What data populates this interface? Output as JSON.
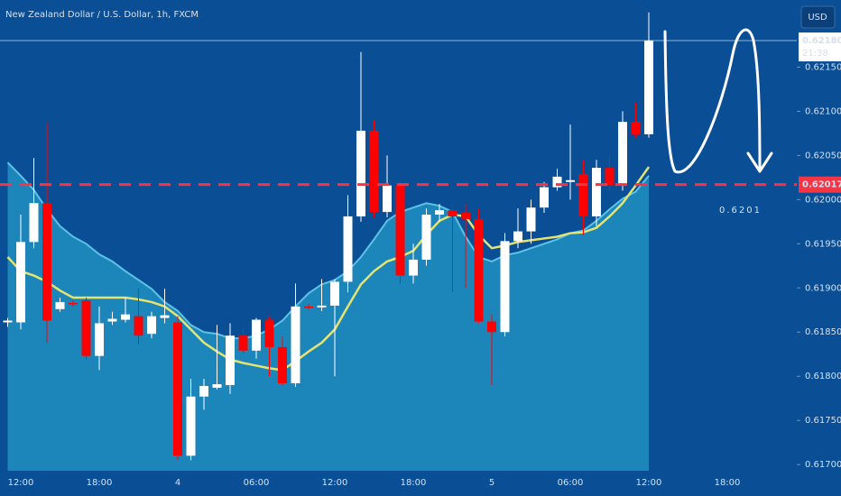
{
  "chart_data": {
    "type": "candlestick",
    "title": "New Zealand Dollar / U.S. Dollar, 1h, FXCM",
    "currency": "USD",
    "categories": [
      null,
      "12:00",
      null,
      null,
      null,
      null,
      null,
      "18:00",
      null,
      null,
      null,
      null,
      null,
      "4",
      null,
      null,
      null,
      null,
      null,
      "06:00",
      null,
      null,
      null,
      null,
      null,
      "12:00",
      null,
      null,
      null,
      null,
      null,
      "18:00",
      null,
      null,
      null,
      null,
      null,
      "5",
      null,
      null,
      null,
      null,
      null,
      "06:00",
      null,
      null,
      null,
      null,
      null,
      "12:00",
      null,
      null,
      null,
      null,
      null,
      "18:00",
      null,
      null,
      null,
      null
    ],
    "open": [
      0.61861,
      0.61861,
      0.61952,
      0.61996,
      0.61876,
      0.61883,
      0.61886,
      0.61823,
      0.61862,
      0.61864,
      0.61868,
      0.61848,
      0.61866,
      0.61861,
      0.6171,
      0.61777,
      0.61787,
      0.6179,
      0.61846,
      0.61829,
      0.61864,
      0.61833,
      0.61792,
      0.61879,
      0.61878,
      0.6188,
      0.61907,
      0.61981,
      0.62078,
      0.61986,
      0.62016,
      0.61914,
      0.61932,
      0.61983,
      0.61988,
      0.61985,
      0.61978,
      0.61862,
      0.6185,
      0.61953,
      0.61964,
      0.61991,
      0.62014,
      0.6202,
      0.62029,
      0.61981,
      0.62036,
      0.62016,
      0.62088,
      0.62074,
      null,
      null,
      null,
      null,
      null,
      null,
      null,
      null,
      null,
      null
    ],
    "high": [
      0.61866,
      0.61983,
      0.62047,
      0.62088,
      0.61889,
      0.61886,
      0.61889,
      0.61879,
      0.61873,
      0.61889,
      0.61899,
      0.61873,
      0.61899,
      0.61868,
      0.61797,
      0.61797,
      0.61858,
      0.6186,
      0.61855,
      0.61866,
      0.61868,
      0.61845,
      0.61905,
      0.61882,
      0.6191,
      0.6191,
      0.62005,
      0.62167,
      0.6209,
      0.6205,
      0.6202,
      0.6195,
      0.6199,
      0.61995,
      0.61995,
      0.61995,
      0.6199,
      0.6187,
      0.61962,
      0.6199,
      0.62,
      0.6202,
      0.62035,
      0.62085,
      0.62045,
      0.62045,
      0.6205,
      0.621,
      0.6211,
      0.62212,
      null,
      null,
      null,
      null,
      null,
      null,
      null,
      null,
      null,
      null
    ],
    "low": [
      0.61856,
      0.61853,
      0.61945,
      0.61838,
      0.61873,
      0.61879,
      0.61819,
      0.61807,
      0.61858,
      0.61861,
      0.61836,
      0.61843,
      0.6186,
      0.61705,
      0.61705,
      0.61762,
      0.61785,
      0.6178,
      0.61826,
      0.6182,
      0.618,
      0.6179,
      0.61788,
      0.61876,
      0.61874,
      0.618,
      0.61895,
      0.61975,
      0.6198,
      0.6198,
      0.61905,
      0.61905,
      0.61925,
      0.61975,
      0.61895,
      0.619,
      0.6186,
      0.6179,
      0.61845,
      0.61945,
      0.6195,
      0.61985,
      0.6201,
      0.62,
      0.6196,
      0.6197,
      0.6201,
      0.6201,
      0.6207,
      0.6207,
      null,
      null,
      null,
      null,
      null,
      null,
      null,
      null,
      null,
      null
    ],
    "close": [
      0.61863,
      0.61952,
      0.61996,
      0.61863,
      0.61884,
      0.61882,
      0.61823,
      0.6186,
      0.61865,
      0.6187,
      0.61846,
      0.61868,
      0.61869,
      0.6171,
      0.61777,
      0.61789,
      0.61791,
      0.61846,
      0.61829,
      0.61864,
      0.61833,
      0.61792,
      0.61879,
      0.61878,
      0.6188,
      0.61907,
      0.61981,
      0.62078,
      0.61986,
      0.62016,
      0.61914,
      0.61932,
      0.61983,
      0.61988,
      0.61981,
      0.61978,
      0.61862,
      0.6185,
      0.61953,
      0.61964,
      0.61991,
      0.62014,
      0.62026,
      0.62022,
      0.61981,
      0.62036,
      0.62016,
      0.62088,
      0.62074,
      0.6218,
      null,
      null,
      null,
      null,
      null,
      null,
      null,
      null,
      null,
      null
    ],
    "up_color": "#ffffff",
    "down_color": "#ff0000",
    "ma": {
      "color": "#e6e36e",
      "values": [
        0.61935,
        0.61919,
        0.61914,
        0.61907,
        0.61897,
        0.61889,
        0.61889,
        0.61889,
        0.61889,
        0.61889,
        0.61887,
        0.61884,
        0.61879,
        0.61868,
        0.61853,
        0.61838,
        0.61828,
        0.61819,
        0.61815,
        0.61812,
        0.61809,
        0.61807,
        0.61817,
        0.61828,
        0.61838,
        0.61853,
        0.61879,
        0.61904,
        0.61919,
        0.6193,
        0.61935,
        0.61942,
        0.6196,
        0.61976,
        0.61983,
        0.61981,
        0.6196,
        0.61945,
        0.61948,
        0.61952,
        0.61954,
        0.61956,
        0.61958,
        0.61962,
        0.61963,
        0.61968,
        0.61981,
        0.61996,
        0.62016,
        0.62037,
        null,
        null,
        null,
        null,
        null,
        null,
        null,
        null,
        null,
        null
      ]
    },
    "band": {
      "color": "#1c86bb",
      "line_color": "#5cc3e4",
      "values": [
        0.62042,
        0.62027,
        0.62011,
        0.61989,
        0.6197,
        0.61958,
        0.6195,
        0.61938,
        0.6193,
        0.61919,
        0.61909,
        0.61899,
        0.61884,
        0.61874,
        0.61858,
        0.6185,
        0.61848,
        0.61843,
        0.61843,
        0.61846,
        0.61853,
        0.61863,
        0.61879,
        0.61894,
        0.61904,
        0.61909,
        0.61919,
        0.61935,
        0.61955,
        0.61976,
        0.61986,
        0.61991,
        0.61996,
        0.61993,
        0.61986,
        0.61958,
        0.61935,
        0.6193,
        0.61937,
        0.6194,
        0.61945,
        0.6195,
        0.61955,
        0.61962,
        0.61965,
        0.61976,
        0.61989,
        0.62001,
        0.62009,
        0.62027,
        null,
        null,
        null,
        null,
        null,
        null,
        null,
        null,
        null,
        null
      ]
    },
    "ylim": [
      0.61693,
      0.62226
    ],
    "yticks": [
      {
        "value": 0.617,
        "label": "0.61700"
      },
      {
        "value": 0.6175,
        "label": "0.61750"
      },
      {
        "value": 0.618,
        "label": "0.61800"
      },
      {
        "value": 0.6185,
        "label": "0.61850"
      },
      {
        "value": 0.619,
        "label": "0.61900"
      },
      {
        "value": 0.6195,
        "label": "0.61950"
      },
      {
        "value": 0.62,
        "label": "0.62000"
      },
      {
        "value": 0.6205,
        "label": "0.62050"
      },
      {
        "value": 0.621,
        "label": "0.62100"
      },
      {
        "value": 0.6215,
        "label": "0.62150"
      }
    ],
    "last_price": {
      "value": 0.6218,
      "label": "0.62180"
    },
    "countdown": "21:38",
    "level": {
      "value": 0.62017,
      "label": "0.62017",
      "color": "#f23645"
    },
    "annotation": "0.6201"
  }
}
